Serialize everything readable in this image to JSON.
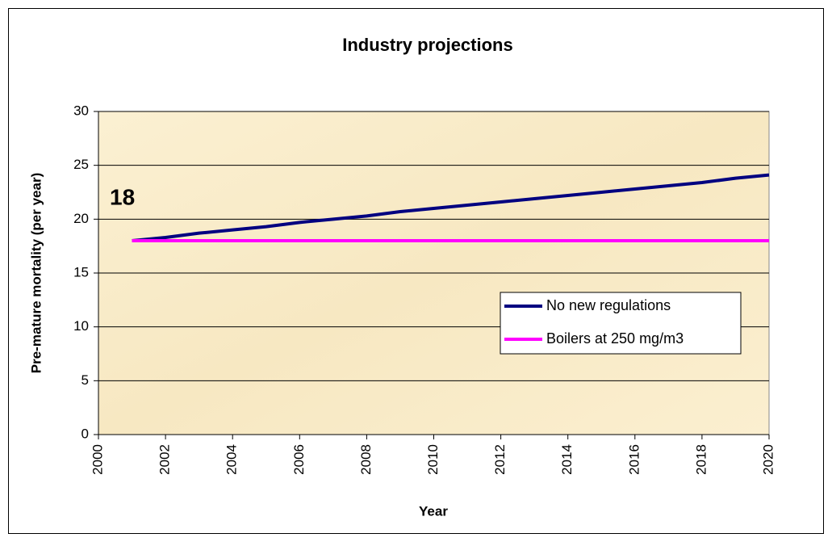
{
  "chart_data": {
    "type": "line",
    "title": "Industry projections",
    "x_label": "Year",
    "y_label": "Pre-mature mortality (per year)",
    "annotation": "18",
    "x": [
      2001,
      2002,
      2003,
      2004,
      2005,
      2006,
      2007,
      2008,
      2009,
      2010,
      2011,
      2012,
      2013,
      2014,
      2015,
      2016,
      2017,
      2018,
      2019,
      2020
    ],
    "series": [
      {
        "name": "No new regulations",
        "color": "#000080",
        "values": [
          18,
          18.3,
          18.7,
          19.0,
          19.3,
          19.7,
          20.0,
          20.3,
          20.7,
          21.0,
          21.3,
          21.6,
          21.9,
          22.2,
          22.5,
          22.8,
          23.1,
          23.4,
          23.8,
          24.1
        ]
      },
      {
        "name": "Boilers at 250 mg/m3",
        "color": "#ff00ff",
        "values": [
          18,
          18,
          18,
          18,
          18,
          18,
          18,
          18,
          18,
          18,
          18,
          18,
          18,
          18,
          18,
          18,
          18,
          18,
          18,
          18
        ]
      }
    ],
    "xlim": [
      2000,
      2020
    ],
    "xticks": [
      2000,
      2002,
      2004,
      2006,
      2008,
      2010,
      2012,
      2014,
      2016,
      2018,
      2020
    ],
    "ylim": [
      0,
      30
    ],
    "yticks": [
      0,
      5,
      10,
      15,
      20,
      25,
      30
    ],
    "grid": true,
    "legend_position": "right"
  }
}
